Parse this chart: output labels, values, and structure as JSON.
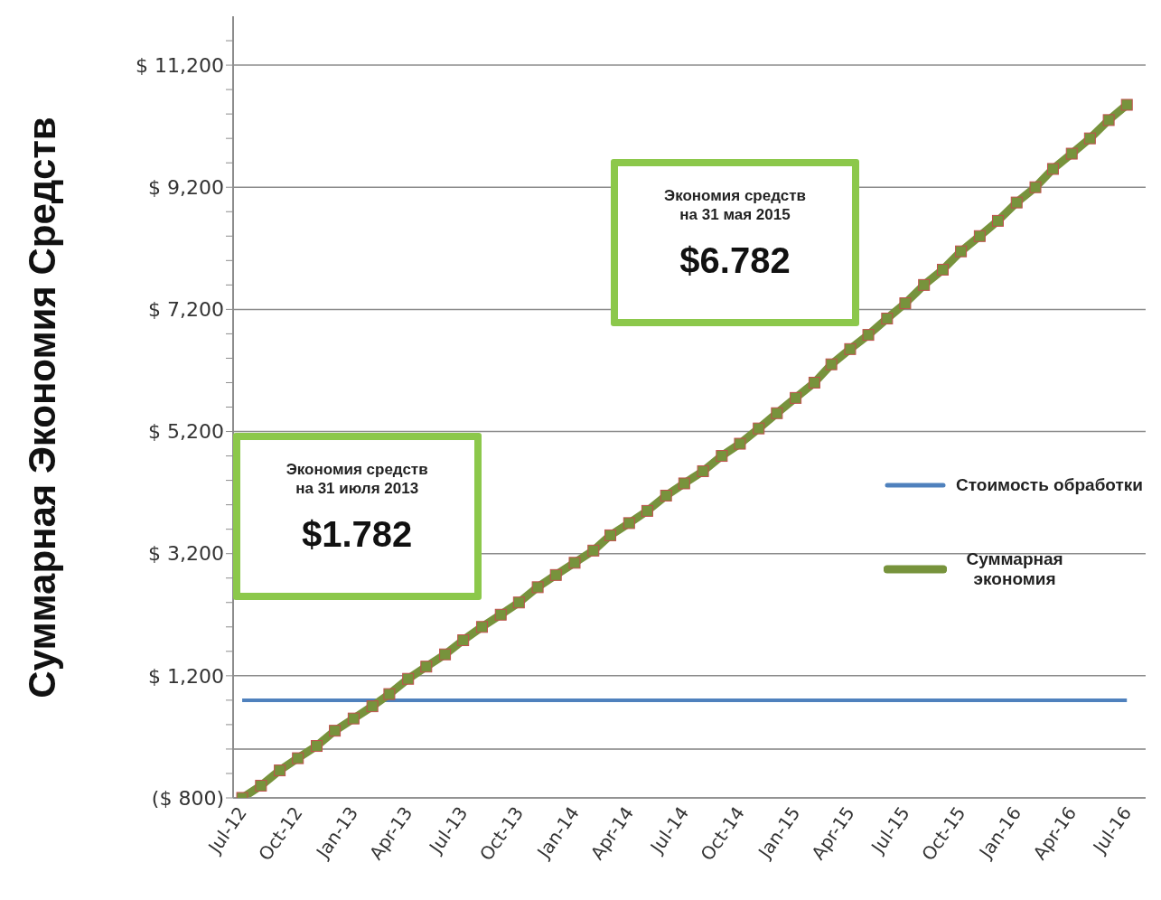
{
  "chart_data": {
    "type": "line",
    "ylabel": "Суммарная Экономия Средств",
    "x": [
      "2012-07",
      "2012-08",
      "2012-09",
      "2012-10",
      "2012-11",
      "2012-12",
      "2013-01",
      "2013-02",
      "2013-03",
      "2013-04",
      "2013-05",
      "2013-06",
      "2013-07",
      "2013-08",
      "2013-09",
      "2013-10",
      "2013-11",
      "2013-12",
      "2014-01",
      "2014-02",
      "2014-03",
      "2014-04",
      "2014-05",
      "2014-06",
      "2014-07",
      "2014-08",
      "2014-09",
      "2014-10",
      "2014-11",
      "2014-12",
      "2015-01",
      "2015-02",
      "2015-03",
      "2015-04",
      "2015-05",
      "2015-06",
      "2015-07",
      "2015-08",
      "2015-09",
      "2015-10",
      "2015-11",
      "2015-12",
      "2016-01",
      "2016-02",
      "2016-03",
      "2016-04",
      "2016-05",
      "2016-06",
      "2016-07"
    ],
    "series": [
      {
        "name": "Стоимость обработки",
        "color": "#4f81bd",
        "marker": "none",
        "values": [
          800,
          800,
          800,
          800,
          800,
          800,
          800,
          800,
          800,
          800,
          800,
          800,
          800,
          800,
          800,
          800,
          800,
          800,
          800,
          800,
          800,
          800,
          800,
          800,
          800,
          800,
          800,
          800,
          800,
          800,
          800,
          800,
          800,
          800,
          800,
          800,
          800,
          800,
          800,
          800,
          800,
          800,
          800,
          800,
          800,
          800,
          800,
          800,
          800
        ]
      },
      {
        "name": "Суммарная экономия",
        "color": "#77933c",
        "marker": "square",
        "values": [
          -800,
          -600,
          -350,
          -150,
          50,
          300,
          500,
          700,
          900,
          1150,
          1350,
          1550,
          1782,
          2000,
          2200,
          2400,
          2650,
          2850,
          3050,
          3250,
          3500,
          3700,
          3900,
          4150,
          4350,
          4550,
          4800,
          5000,
          5250,
          5500,
          5750,
          6000,
          6300,
          6550,
          6782,
          7050,
          7300,
          7600,
          7850,
          8150,
          8400,
          8650,
          8950,
          9200,
          9500,
          9750,
          10000,
          10300,
          10550
        ]
      }
    ],
    "xlim": [
      "2012-06-16",
      "2016-08-01"
    ],
    "xticks": [
      {
        "value": "2012-07",
        "label": "Jul-12"
      },
      {
        "value": "2012-10",
        "label": "Oct-12"
      },
      {
        "value": "2013-01",
        "label": "Jan-13"
      },
      {
        "value": "2013-04",
        "label": "Apr-13"
      },
      {
        "value": "2013-07",
        "label": "Jul-13"
      },
      {
        "value": "2013-10",
        "label": "Oct-13"
      },
      {
        "value": "2014-01",
        "label": "Jan-14"
      },
      {
        "value": "2014-04",
        "label": "Apr-14"
      },
      {
        "value": "2014-07",
        "label": "Jul-14"
      },
      {
        "value": "2014-10",
        "label": "Oct-14"
      },
      {
        "value": "2015-01",
        "label": "Jan-15"
      },
      {
        "value": "2015-04",
        "label": "Apr-15"
      },
      {
        "value": "2015-07",
        "label": "Jul-15"
      },
      {
        "value": "2015-10",
        "label": "Oct-15"
      },
      {
        "value": "2016-01",
        "label": "Jan-16"
      },
      {
        "value": "2016-04",
        "label": "Apr-16"
      },
      {
        "value": "2016-07",
        "label": "Jul-16"
      }
    ],
    "ylim": [
      -800,
      12000
    ],
    "yticks": [
      {
        "value": -800,
        "label": "($ 800)"
      },
      {
        "value": -400,
        "label": null
      },
      {
        "value": 0,
        "label": null
      },
      {
        "value": 400,
        "label": null
      },
      {
        "value": 800,
        "label": null
      },
      {
        "value": 1200,
        "label": "$ 1,200"
      },
      {
        "value": 1600,
        "label": null
      },
      {
        "value": 2000,
        "label": null
      },
      {
        "value": 2400,
        "label": null
      },
      {
        "value": 2800,
        "label": null
      },
      {
        "value": 3200,
        "label": "$ 3,200"
      },
      {
        "value": 3600,
        "label": null
      },
      {
        "value": 4000,
        "label": null
      },
      {
        "value": 4400,
        "label": null
      },
      {
        "value": 4800,
        "label": null
      },
      {
        "value": 5200,
        "label": "$ 5,200"
      },
      {
        "value": 5600,
        "label": null
      },
      {
        "value": 6000,
        "label": null
      },
      {
        "value": 6400,
        "label": null
      },
      {
        "value": 6800,
        "label": null
      },
      {
        "value": 7200,
        "label": "$ 7,200"
      },
      {
        "value": 7600,
        "label": null
      },
      {
        "value": 8000,
        "label": null
      },
      {
        "value": 8400,
        "label": null
      },
      {
        "value": 8800,
        "label": null
      },
      {
        "value": 9200,
        "label": "$ 9,200"
      },
      {
        "value": 9600,
        "label": null
      },
      {
        "value": 10000,
        "label": null
      },
      {
        "value": 10400,
        "label": null
      },
      {
        "value": 10800,
        "label": null
      },
      {
        "value": 11200,
        "label": "$ 11,200"
      },
      {
        "value": 11600,
        "label": null
      }
    ],
    "ref_lines": [
      {
        "axis": "y",
        "value": 0,
        "color": "#808080"
      }
    ],
    "annotations": [
      {
        "text": "Экономия средств\nна 31 июля 2013\n$1.782",
        "x": "2013-07",
        "y": 1782
      },
      {
        "text": "Экономия средств\nна 31 мая 2015\n$6.782",
        "x": "2015-05",
        "y": 6782
      }
    ],
    "grid": "y",
    "legend": "right",
    "line_style": "solid"
  }
}
